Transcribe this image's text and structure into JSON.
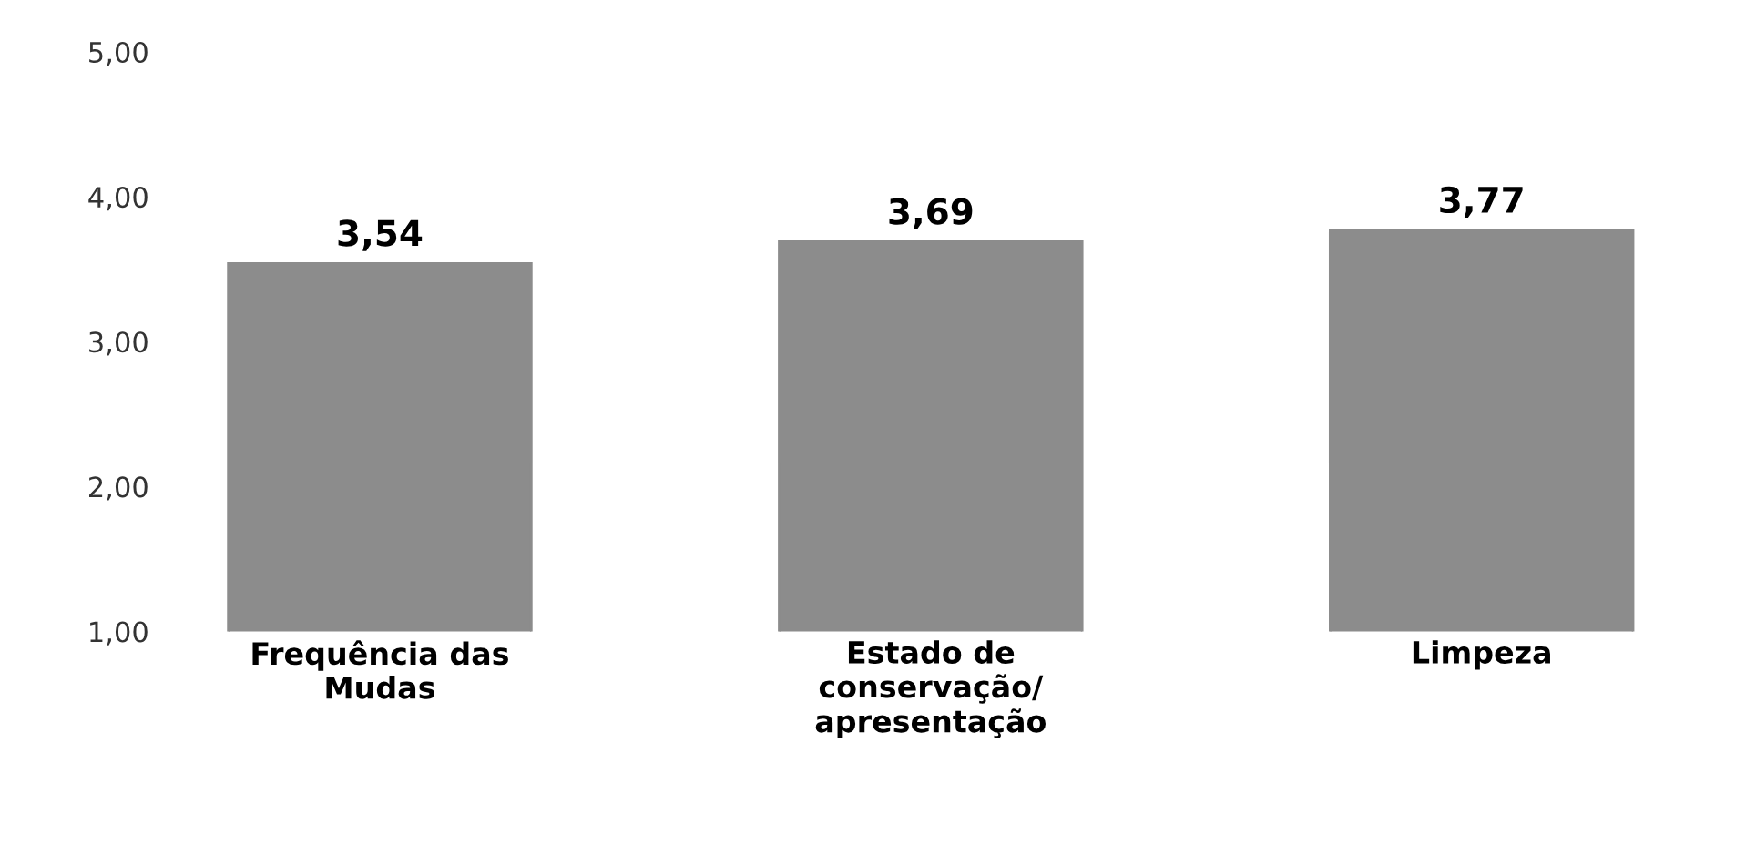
{
  "chart_data": {
    "type": "bar",
    "categories": [
      "Frequência das Mudas",
      "Estado de conservação/ apresentação",
      "Limpeza"
    ],
    "values": [
      3.54,
      3.69,
      3.77
    ],
    "value_labels": [
      "3,54",
      "3,69",
      "3,77"
    ],
    "color": "#8c8c8c",
    "ylim": [
      1,
      5
    ],
    "yticks": [
      {
        "value": 1,
        "label": "1,00"
      },
      {
        "value": 2,
        "label": "2,00"
      },
      {
        "value": 3,
        "label": "3,00"
      },
      {
        "value": 4,
        "label": "4,00"
      },
      {
        "value": 5,
        "label": "5,00"
      }
    ],
    "grid": false,
    "legend": false
  }
}
